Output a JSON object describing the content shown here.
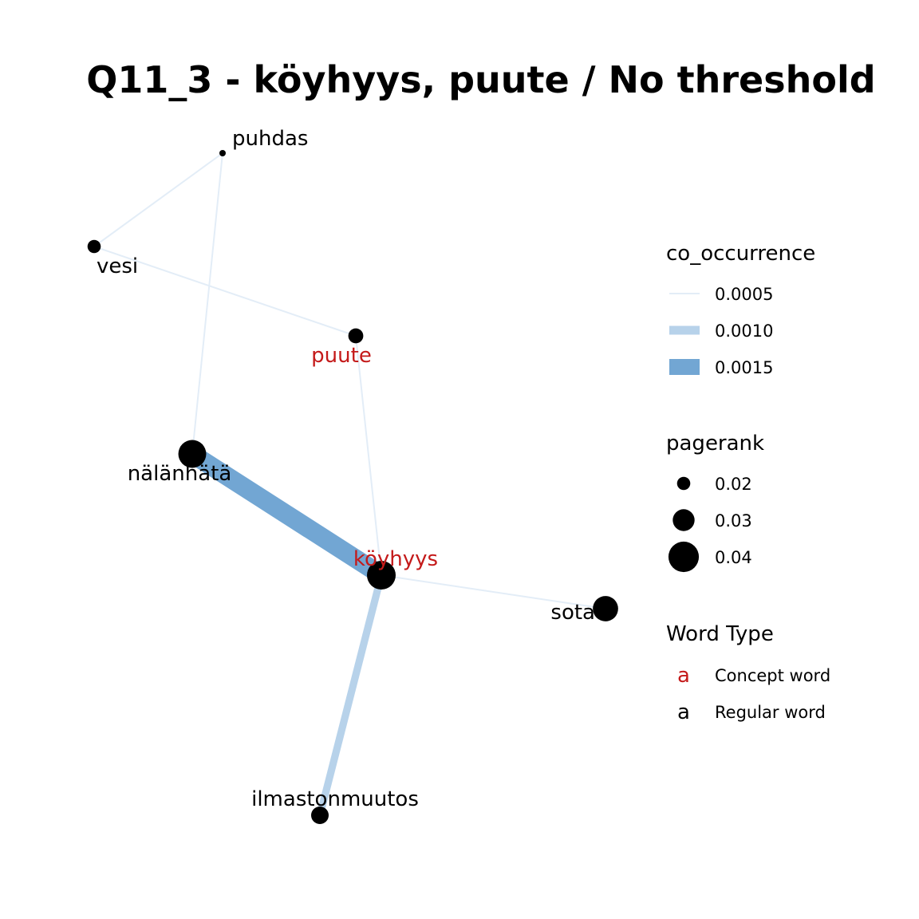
{
  "title": "Q11_3 - köyhyys, puute / No threshold",
  "colors": {
    "concept": "#c41a1a",
    "regular": "#000000",
    "edge_low": "#e3edf7",
    "edge_mid": "#b7d2ea",
    "edge_high": "#72a6d3",
    "node": "#000000"
  },
  "nodes": [
    {
      "id": "puhdas",
      "label": "puhdas",
      "type": "regular",
      "pagerank": 0.012
    },
    {
      "id": "vesi",
      "label": "vesi",
      "type": "regular",
      "pagerank": 0.02
    },
    {
      "id": "puute",
      "label": "puute",
      "type": "concept",
      "pagerank": 0.022
    },
    {
      "id": "nalannata",
      "label": "nälänhätä",
      "type": "regular",
      "pagerank": 0.037
    },
    {
      "id": "koyhyys",
      "label": "köyhyys",
      "type": "concept",
      "pagerank": 0.038
    },
    {
      "id": "sota",
      "label": "sota",
      "type": "regular",
      "pagerank": 0.034
    },
    {
      "id": "ilmastonmuutos",
      "label": "ilmastonmuutos",
      "type": "regular",
      "pagerank": 0.025
    }
  ],
  "edges": [
    {
      "source": "puhdas",
      "target": "vesi",
      "co_occurrence": 0.0005
    },
    {
      "source": "puhdas",
      "target": "nalannata",
      "co_occurrence": 0.0005
    },
    {
      "source": "vesi",
      "target": "puute",
      "co_occurrence": 0.0005
    },
    {
      "source": "puute",
      "target": "koyhyys",
      "co_occurrence": 0.0005
    },
    {
      "source": "nalannata",
      "target": "koyhyys",
      "co_occurrence": 0.0017
    },
    {
      "source": "koyhyys",
      "target": "sota",
      "co_occurrence": 0.0005
    },
    {
      "source": "koyhyys",
      "target": "ilmastonmuutos",
      "co_occurrence": 0.0009
    }
  ],
  "legend": {
    "co_occurrence": {
      "title": "co_occurrence",
      "items": [
        {
          "label": "0.0005",
          "value": 0.0005
        },
        {
          "label": "0.0010",
          "value": 0.001
        },
        {
          "label": "0.0015",
          "value": 0.0015
        }
      ]
    },
    "pagerank": {
      "title": "pagerank",
      "items": [
        {
          "label": "0.02",
          "value": 0.02
        },
        {
          "label": "0.03",
          "value": 0.03
        },
        {
          "label": "0.04",
          "value": 0.04
        }
      ]
    },
    "word_type": {
      "title": "Word Type",
      "items": [
        {
          "glyph": "a",
          "label": "Concept word",
          "type": "concept"
        },
        {
          "glyph": "a",
          "label": "Regular word",
          "type": "regular"
        }
      ]
    }
  }
}
